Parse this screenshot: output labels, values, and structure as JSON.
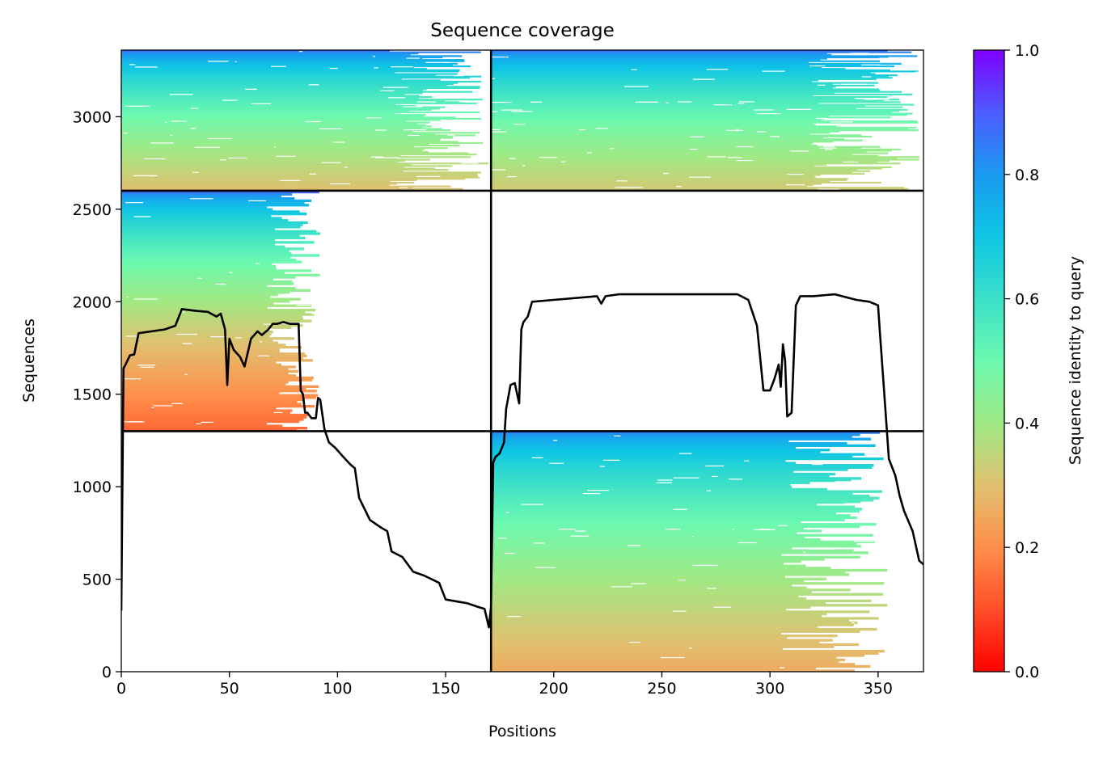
{
  "chart_data": {
    "type": "heatmap",
    "title": "Sequence coverage",
    "xlabel": "Positions",
    "ylabel": "Sequences",
    "xlim": [
      0,
      371
    ],
    "ylim": [
      0,
      3360
    ],
    "x_ticks": [
      0,
      50,
      100,
      150,
      200,
      250,
      300,
      350
    ],
    "y_ticks": [
      0,
      500,
      1000,
      1500,
      2000,
      2500,
      3000
    ],
    "colorbar": {
      "label": "Sequence identity to query",
      "range": [
        0.0,
        1.0
      ],
      "ticks": [
        "0.0",
        "0.2",
        "0.4",
        "0.6",
        "0.8",
        "1.0"
      ],
      "colormap": "rainbow_r"
    },
    "domain_split_x": 171,
    "row_splits": [
      1300,
      2600
    ],
    "blocks": [
      {
        "name": "block-top-left",
        "x": [
          0,
          171
        ],
        "y": [
          2600,
          3360
        ],
        "identity_bottom": 0.3,
        "identity_top": 0.88,
        "dense_end_x": 170
      },
      {
        "name": "block-top-right",
        "x": [
          171,
          371
        ],
        "y": [
          2600,
          3360
        ],
        "identity_bottom": 0.32,
        "identity_top": 0.88,
        "dense_end_x": 371
      },
      {
        "name": "block-middle-left",
        "x": [
          0,
          171
        ],
        "y": [
          1300,
          2600
        ],
        "identity_bottom": 0.14,
        "identity_top": 0.88,
        "dense_end_x": 92
      },
      {
        "name": "block-bottom-right",
        "x": [
          171,
          371
        ],
        "y": [
          0,
          1300
        ],
        "identity_bottom": 0.26,
        "identity_top": 0.85,
        "dense_end_x": 355
      }
    ],
    "coverage_line": {
      "name": "coverage",
      "x": [
        0,
        1,
        2,
        4,
        6,
        8,
        20,
        25,
        28,
        35,
        40,
        44,
        46,
        48,
        49,
        50,
        52,
        55,
        57,
        60,
        63,
        65,
        68,
        70,
        72,
        75,
        78,
        82,
        83,
        84,
        85,
        86,
        88,
        90,
        91,
        92,
        94,
        96,
        99,
        102,
        106,
        108,
        110,
        115,
        120,
        123,
        125,
        130,
        135,
        140,
        147,
        150,
        160,
        165,
        168,
        170,
        171,
        172,
        173,
        175,
        177,
        178,
        180,
        182,
        184,
        185,
        186,
        188,
        190,
        200,
        220,
        222,
        224,
        230,
        240,
        260,
        285,
        290,
        294,
        297,
        300,
        302,
        304,
        305,
        306,
        307,
        308,
        310,
        312,
        314,
        320,
        330,
        340,
        346,
        350,
        351,
        353,
        355,
        358,
        360,
        362,
        366,
        369,
        371
      ],
      "y": [
        330,
        1640,
        1660,
        1710,
        1715,
        1830,
        1850,
        1870,
        1960,
        1950,
        1945,
        1920,
        1935,
        1850,
        1550,
        1800,
        1740,
        1700,
        1650,
        1800,
        1840,
        1820,
        1850,
        1880,
        1880,
        1890,
        1880,
        1880,
        1520,
        1500,
        1400,
        1400,
        1370,
        1370,
        1480,
        1470,
        1310,
        1240,
        1210,
        1170,
        1120,
        1100,
        940,
        820,
        780,
        760,
        650,
        620,
        540,
        520,
        480,
        390,
        370,
        350,
        340,
        240,
        350,
        1130,
        1160,
        1180,
        1240,
        1420,
        1550,
        1560,
        1450,
        1850,
        1890,
        1920,
        2000,
        2010,
        2030,
        1990,
        2030,
        2040,
        2040,
        2040,
        2040,
        2010,
        1870,
        1520,
        1520,
        1580,
        1660,
        1540,
        1770,
        1680,
        1380,
        1400,
        1980,
        2030,
        2030,
        2040,
        2010,
        2000,
        1980,
        1810,
        1480,
        1150,
        1060,
        950,
        870,
        760,
        600,
        580
      ]
    }
  }
}
